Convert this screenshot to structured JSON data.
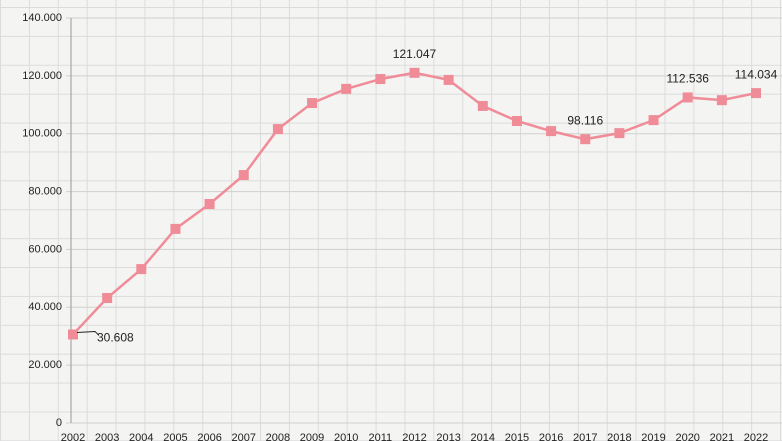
{
  "chart_data": {
    "type": "line",
    "categories": [
      "2002",
      "2003",
      "2004",
      "2005",
      "2006",
      "2007",
      "2008",
      "2009",
      "2010",
      "2011",
      "2012",
      "2013",
      "2014",
      "2015",
      "2016",
      "2017",
      "2018",
      "2019",
      "2020",
      "2021",
      "2022"
    ],
    "series": [
      {
        "color": "#f08c98",
        "values": [
          30608,
          43200,
          53200,
          67100,
          75700,
          85700,
          101600,
          110600,
          115500,
          118900,
          121047,
          118600,
          109600,
          104400,
          100900,
          98116,
          100200,
          104700,
          112536,
          111600,
          114034
        ],
        "value_labels": [
          "30.608",
          null,
          null,
          null,
          null,
          null,
          null,
          null,
          null,
          null,
          "121.047",
          null,
          null,
          null,
          null,
          "98.116",
          null,
          null,
          "112.536",
          null,
          "114.034"
        ]
      }
    ],
    "ylim": [
      0,
      140000
    ],
    "yticks": [
      {
        "value": 0,
        "label": "0"
      },
      {
        "value": 20000,
        "label": "20.000"
      },
      {
        "value": 40000,
        "label": "40.000"
      },
      {
        "value": 60000,
        "label": "60.000"
      },
      {
        "value": 80000,
        "label": "80.000"
      },
      {
        "value": 100000,
        "label": "100.000"
      },
      {
        "value": 120000,
        "label": "120.000"
      },
      {
        "value": 140000,
        "label": "140.000"
      }
    ],
    "grid": true
  }
}
